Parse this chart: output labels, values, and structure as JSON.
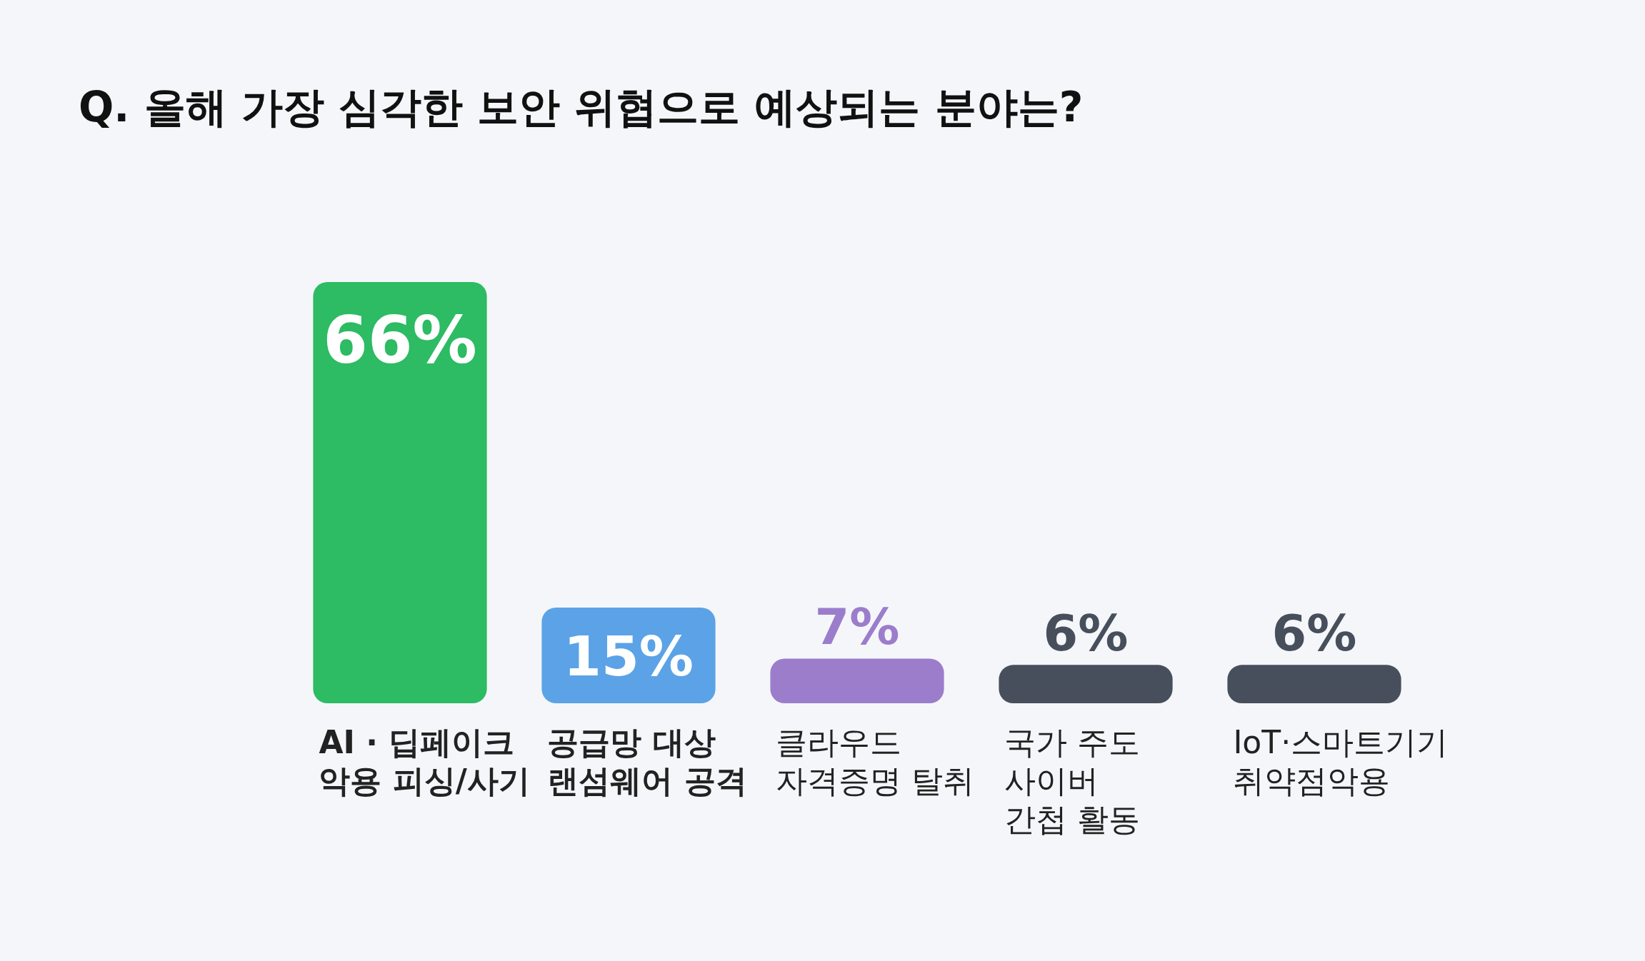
{
  "chart_data": {
    "type": "bar",
    "title": "Q. 올해 가장 심각한 보안 위협으로 예상되는 분야는?",
    "categories": [
      "AI · 딥페이크\n악용 피싱/사기",
      "공급망 대상\n랜섬웨어 공격",
      "클라우드\n자격증명 탈취",
      "국가 주도\n사이버\n간첩 활동",
      "IoT·스마트기기\n취약점악용"
    ],
    "values": [
      66,
      15,
      7,
      6,
      6
    ],
    "value_labels": [
      "66%",
      "15%",
      "7%",
      "6%",
      "6%"
    ],
    "colors": [
      "#2dbb63",
      "#5ba3e6",
      "#9b7dcc",
      "#474f5c",
      "#474f5c"
    ]
  }
}
